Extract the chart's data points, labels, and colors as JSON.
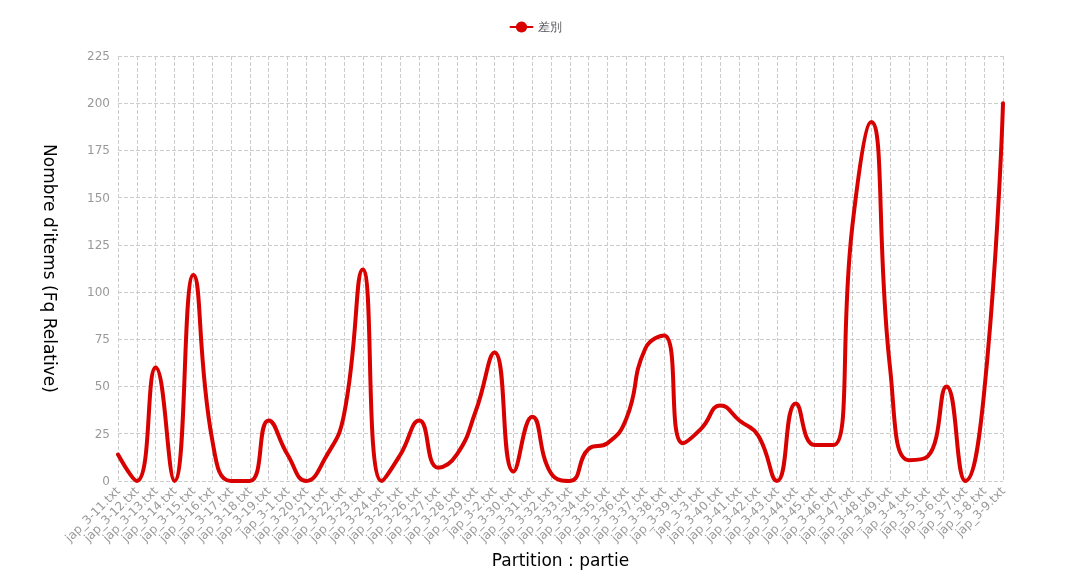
{
  "chart_data": {
    "type": "line",
    "xlabel": "Partition : partie",
    "ylabel": "Nombre d'items (Fq Relative)",
    "categories": [
      "jap_3-11.txt",
      "jap_3-12.txt",
      "jap_3-13.txt",
      "jap_3-14.txt",
      "jap_3-15.txt",
      "jap_3-16.txt",
      "jap_3-17.txt",
      "jap_3-18.txt",
      "jap_3-19.txt",
      "jap_3-1.txt",
      "jap_3-20.txt",
      "jap_3-21.txt",
      "jap_3-22.txt",
      "jap_3-23.txt",
      "jap_3-24.txt",
      "jap_3-25.txt",
      "jap_3-26.txt",
      "jap_3-27.txt",
      "jap_3-28.txt",
      "jap_3-29.txt",
      "jap_3-2.txt",
      "jap_3-30.txt",
      "jap_3-31.txt",
      "jap_3-32.txt",
      "jap_3-33.txt",
      "jap_3-34.txt",
      "jap_3-35.txt",
      "jap_3-36.txt",
      "jap_3-37.txt",
      "jap_3-38.txt",
      "jap_3-39.txt",
      "jap_3-3.txt",
      "jap_3-40.txt",
      "jap_3-41.txt",
      "jap_3-42.txt",
      "jap_3-43.txt",
      "jap_3-44.txt",
      "jap_3-45.txt",
      "jap_3-46.txt",
      "jap_3-47.txt",
      "jap_3-48.txt",
      "jap_3-49.txt",
      "jap_3-4.txt",
      "jap_3-5.txt",
      "jap_3-6.txt",
      "jap_3-7.txt",
      "jap_3-8.txt",
      "jap_3-9.txt"
    ],
    "series": [
      {
        "name": "差別",
        "color": "#d90000",
        "values": [
          14,
          0,
          60,
          0,
          109,
          22,
          0,
          0,
          32,
          14,
          0,
          12,
          35,
          112,
          0,
          14,
          32,
          7,
          14,
          37,
          68,
          5,
          34,
          4,
          0,
          17,
          20,
          33,
          70,
          77,
          20,
          28,
          40,
          32,
          24,
          0,
          41,
          19,
          19,
          135,
          190,
          60,
          11,
          13,
          50,
          0,
          47,
          200
        ]
      }
    ],
    "ylim": [
      0,
      225
    ],
    "yticks": [
      0,
      25,
      50,
      75,
      100,
      125,
      150,
      175,
      200,
      225
    ],
    "grid": true,
    "legend": "top",
    "marker": "none",
    "line_style": "solid"
  }
}
